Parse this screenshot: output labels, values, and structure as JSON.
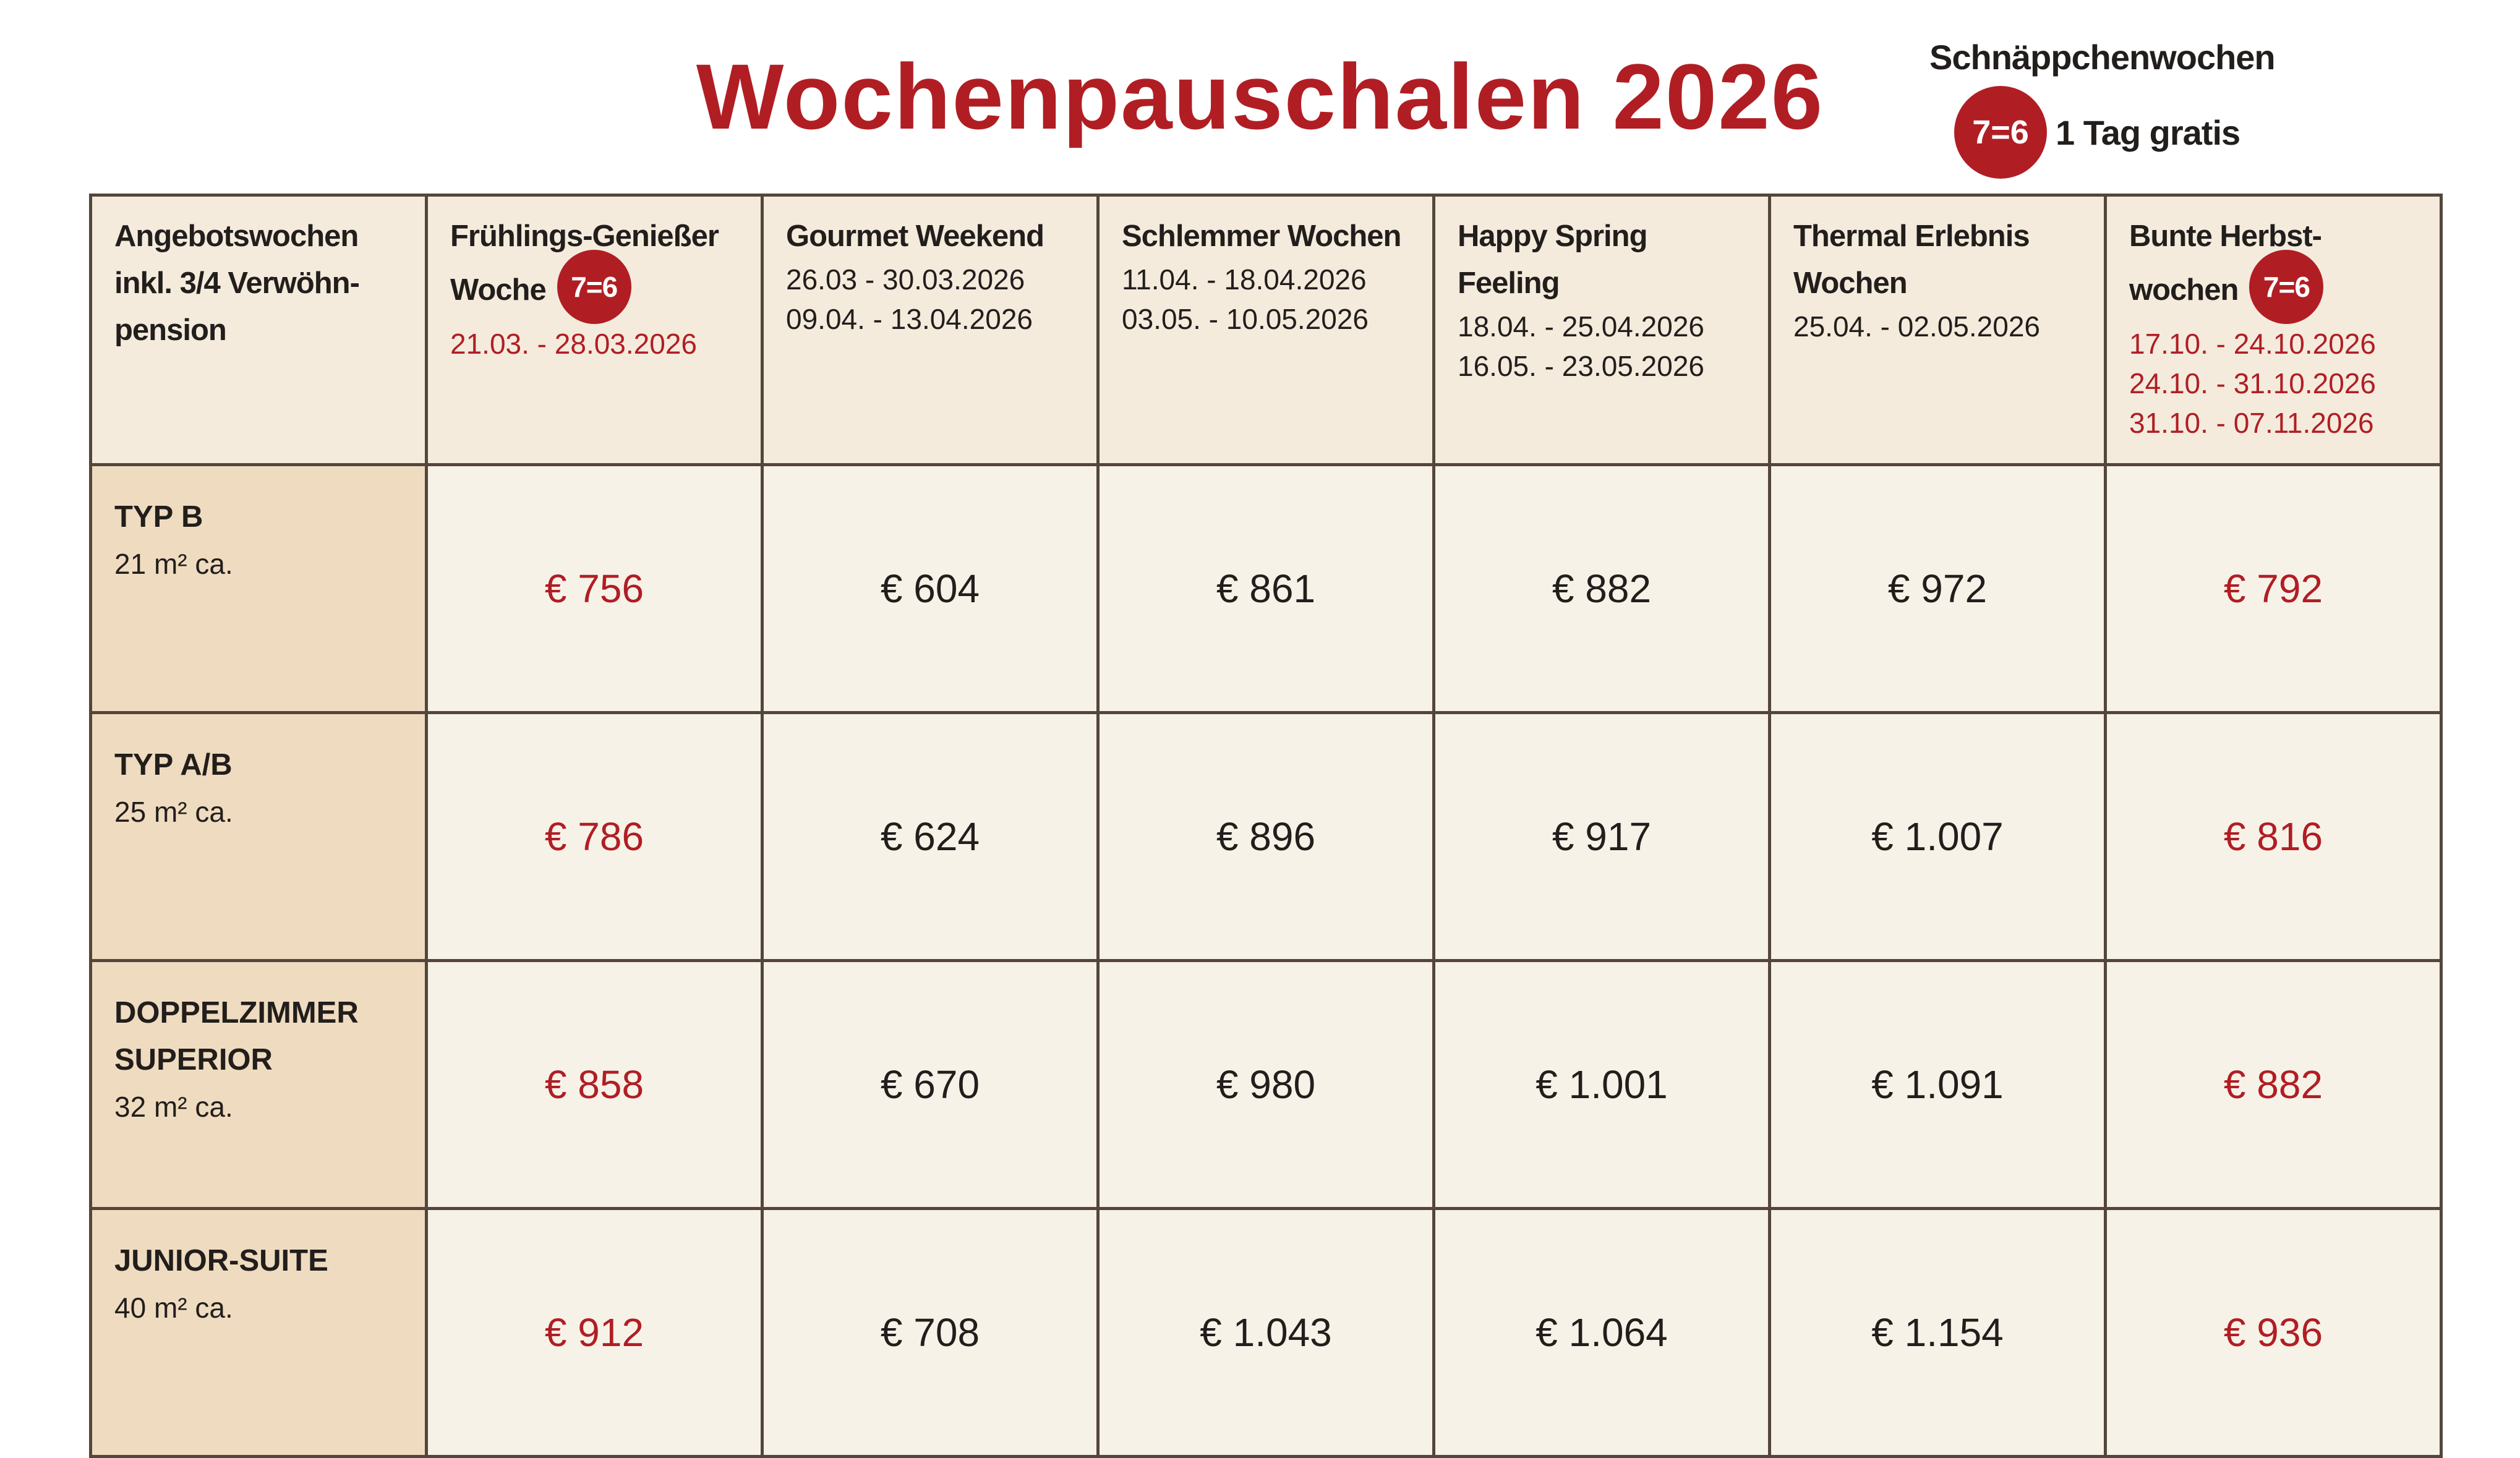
{
  "title": "Wochenpauschalen 2026",
  "legend": {
    "heading": "Schnäppchenwochen",
    "badge": "7=6",
    "text": "1 Tag gratis"
  },
  "colors": {
    "accent": "#b01e24",
    "header_bg": "#f4ebdd",
    "label_bg": "#efdcc0",
    "cell_bg": "#f7f2e8",
    "border": "#54463a"
  },
  "table": {
    "corner_label": [
      "Angebotswochen",
      "inkl. 3/4 Verwöhn-",
      "pension"
    ],
    "columns": [
      {
        "title": [
          "Frühlings-Genießer",
          "Woche"
        ],
        "badge": "7=6",
        "dates": [
          "21.03. - 28.03.2026"
        ],
        "highlight": true
      },
      {
        "title": [
          "Gourmet Weekend"
        ],
        "dates": [
          "26.03 - 30.03.2026",
          "09.04. - 13.04.2026"
        ],
        "highlight": false
      },
      {
        "title": [
          "Schlemmer Wochen"
        ],
        "dates": [
          "11.04. - 18.04.2026",
          "03.05. - 10.05.2026"
        ],
        "highlight": false
      },
      {
        "title": [
          "Happy Spring",
          "Feeling"
        ],
        "dates": [
          "18.04. - 25.04.2026",
          "16.05. - 23.05.2026"
        ],
        "highlight": false
      },
      {
        "title": [
          "Thermal Erlebnis",
          "Wochen"
        ],
        "dates": [
          "25.04. - 02.05.2026"
        ],
        "highlight": false
      },
      {
        "title": [
          "Bunte Herbst-",
          "wochen"
        ],
        "badge": "7=6",
        "dates": [
          "17.10. - 24.10.2026",
          "24.10. - 31.10.2026",
          "31.10. - 07.11.2026"
        ],
        "highlight": true
      }
    ],
    "rows": [
      {
        "name": [
          "TYP B"
        ],
        "size": "21 m² ca.",
        "prices": [
          "€ 756",
          "€ 604",
          "€ 861",
          "€ 882",
          "€ 972",
          "€ 792"
        ]
      },
      {
        "name": [
          "TYP A/B"
        ],
        "size": "25 m² ca.",
        "prices": [
          "€ 786",
          "€ 624",
          "€ 896",
          "€ 917",
          "€ 1.007",
          "€ 816"
        ]
      },
      {
        "name": [
          "DOPPELZIMMER",
          "SUPERIOR"
        ],
        "size": "32 m² ca.",
        "prices": [
          "€ 858",
          "€ 670",
          "€ 980",
          "€ 1.001",
          "€ 1.091",
          "€ 882"
        ]
      },
      {
        "name": [
          "JUNIOR-SUITE"
        ],
        "size": "40 m² ca.",
        "prices": [
          "€ 912",
          "€ 708",
          "€ 1.043",
          "€ 1.064",
          "€ 1.154",
          "€ 936"
        ]
      }
    ]
  }
}
